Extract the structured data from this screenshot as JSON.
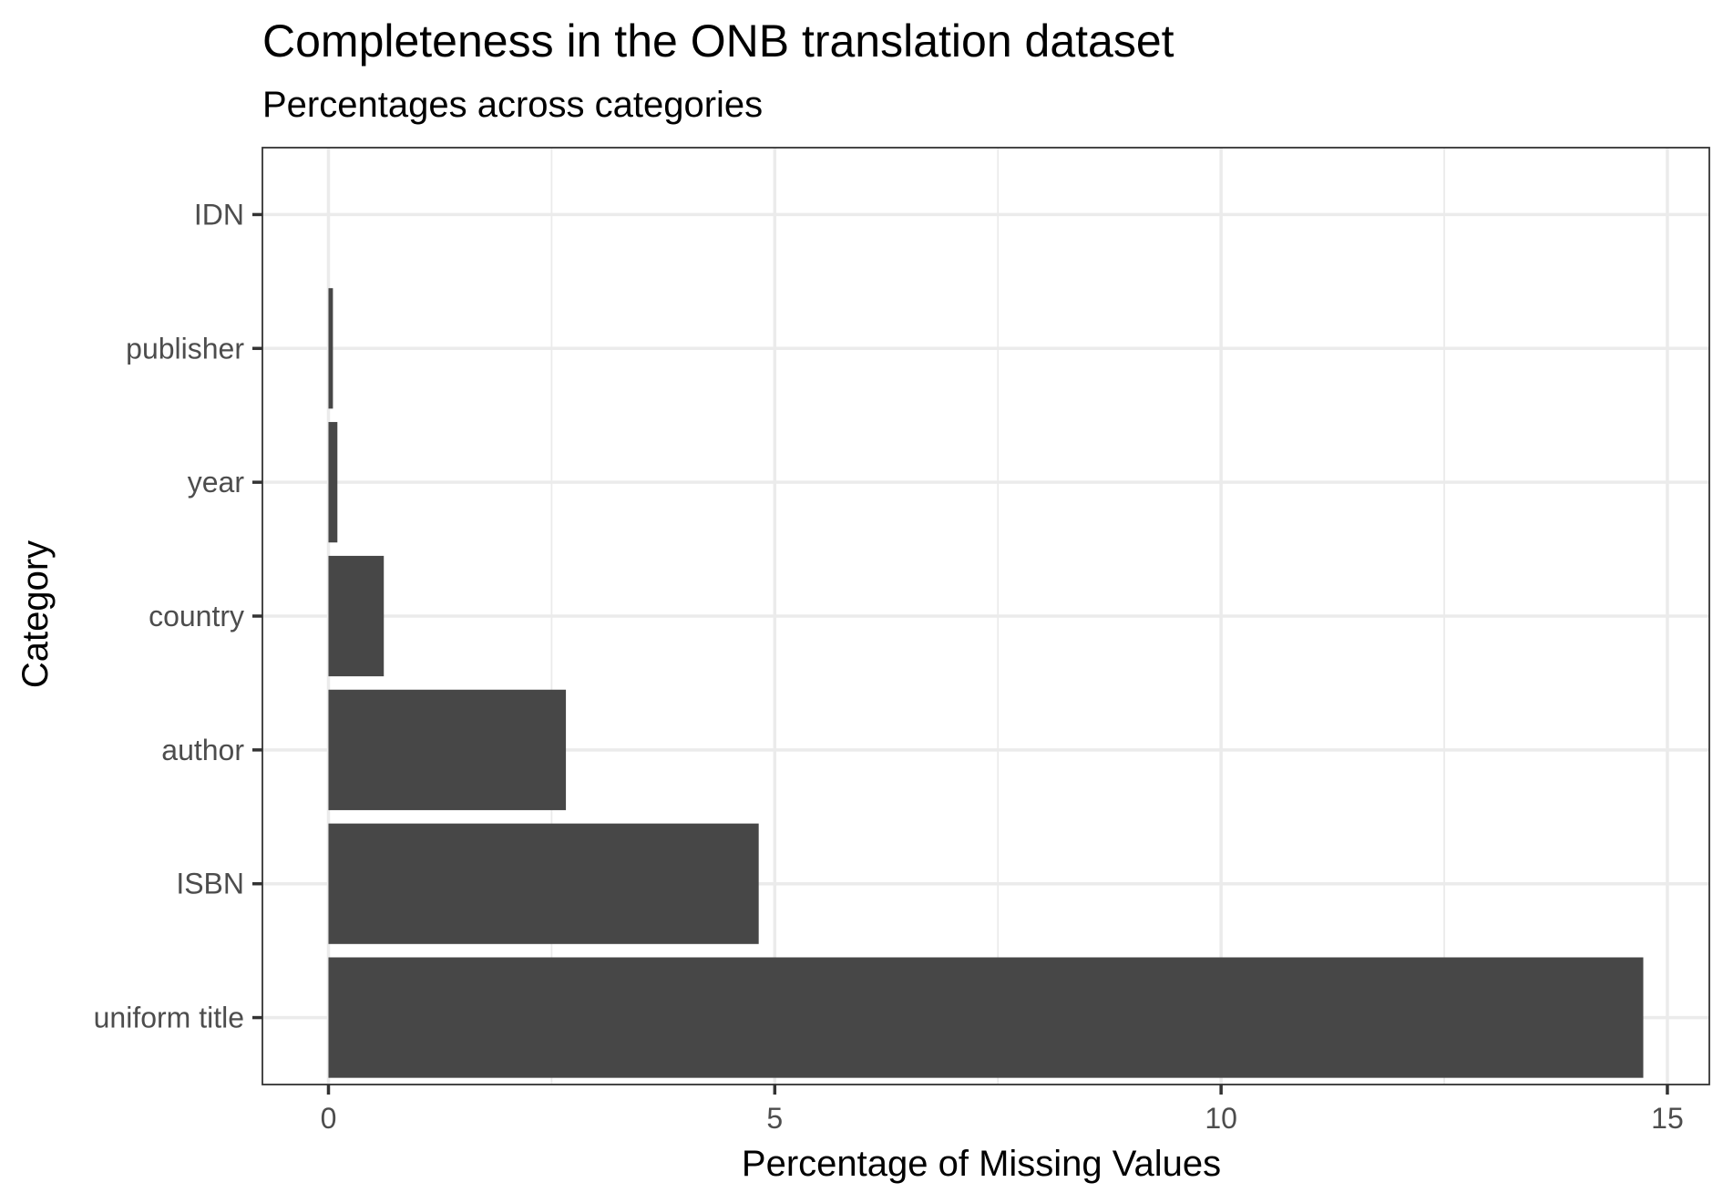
{
  "chart_data": {
    "type": "bar",
    "orientation": "horizontal",
    "title": "Completeness in the ONB translation dataset",
    "subtitle": "Percentages across categories",
    "xlabel": "Percentage of Missing Values",
    "ylabel": "Category",
    "categories": [
      "uniform title",
      "ISBN",
      "author",
      "country",
      "year",
      "publisher",
      "IDN"
    ],
    "values": [
      14.73,
      4.82,
      2.66,
      0.62,
      0.1,
      0.05,
      0
    ],
    "xlim": [
      -0.74,
      15.47
    ],
    "xticks": [
      0,
      5,
      10,
      15
    ],
    "xtick_labels": [
      "0",
      "5",
      "10",
      "15"
    ],
    "grid": true,
    "bar_color": "#474747",
    "theme": "bw"
  }
}
